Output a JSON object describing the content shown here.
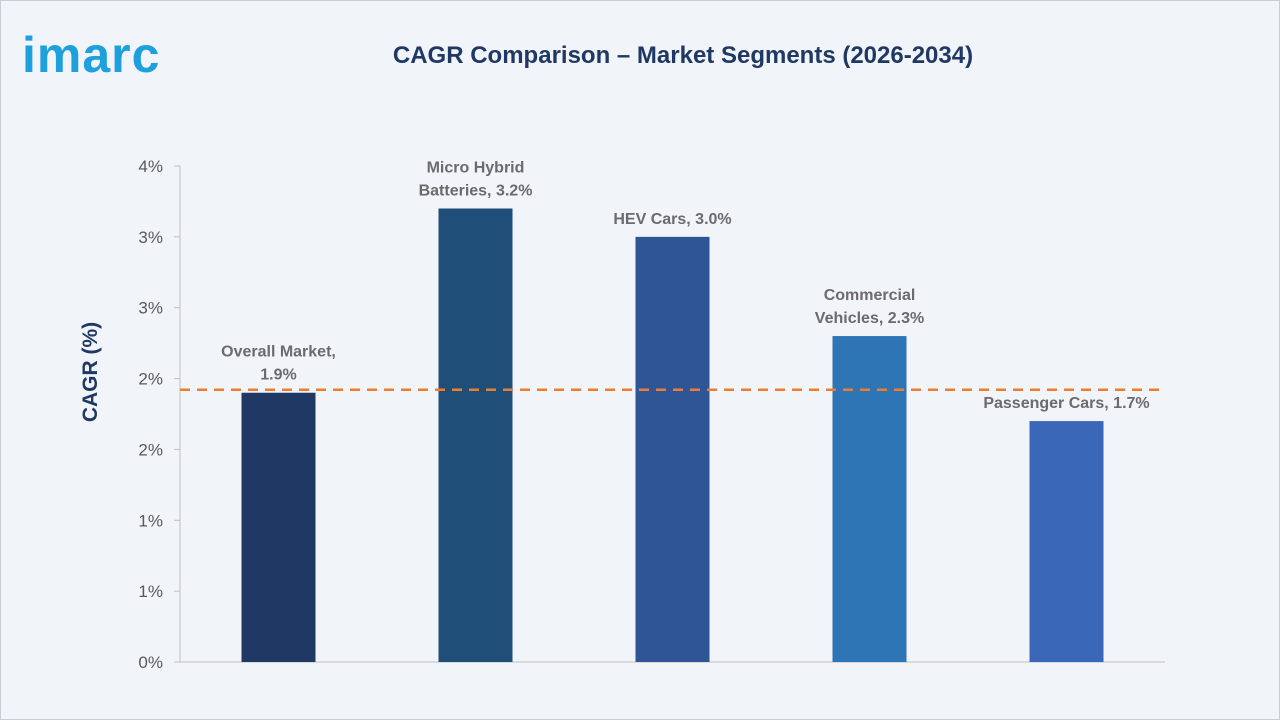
{
  "brand": {
    "logo_text": "imarc",
    "color": "#1ea0dd"
  },
  "title": "CAGR Comparison – Market Segments (2026-2034)",
  "chart_data": {
    "type": "bar",
    "title": "CAGR Comparison – Market Segments (2026-2034)",
    "xlabel": "",
    "ylabel": "CAGR (%)",
    "ylim": [
      0,
      3.5
    ],
    "y_tick_labels": [
      "0%",
      "1%",
      "1%",
      "2%",
      "2%",
      "3%",
      "3%",
      "4%"
    ],
    "categories": [
      "Overall Market",
      "Micro Hybrid Batteries",
      "HEV Cars",
      "Commercial Vehicles",
      "Passenger Cars"
    ],
    "values": [
      1.9,
      3.2,
      3.0,
      2.3,
      1.7
    ],
    "data_labels": [
      [
        "Overall Market,",
        "1.9%"
      ],
      [
        "Micro Hybrid",
        "Batteries, 3.2%"
      ],
      [
        "HEV Cars, 3.0%"
      ],
      [
        "Commercial",
        "Vehicles, 2.3%"
      ],
      [
        "Passenger Cars, 1.7%"
      ]
    ],
    "bar_colors": [
      "#203864",
      "#1f4e79",
      "#2f5597",
      "#2e75b6",
      "#3a67b8"
    ],
    "reference_line": {
      "value": 1.9,
      "style": "dashed",
      "color": "#ed7d31"
    },
    "grid": false,
    "legend": "none"
  }
}
